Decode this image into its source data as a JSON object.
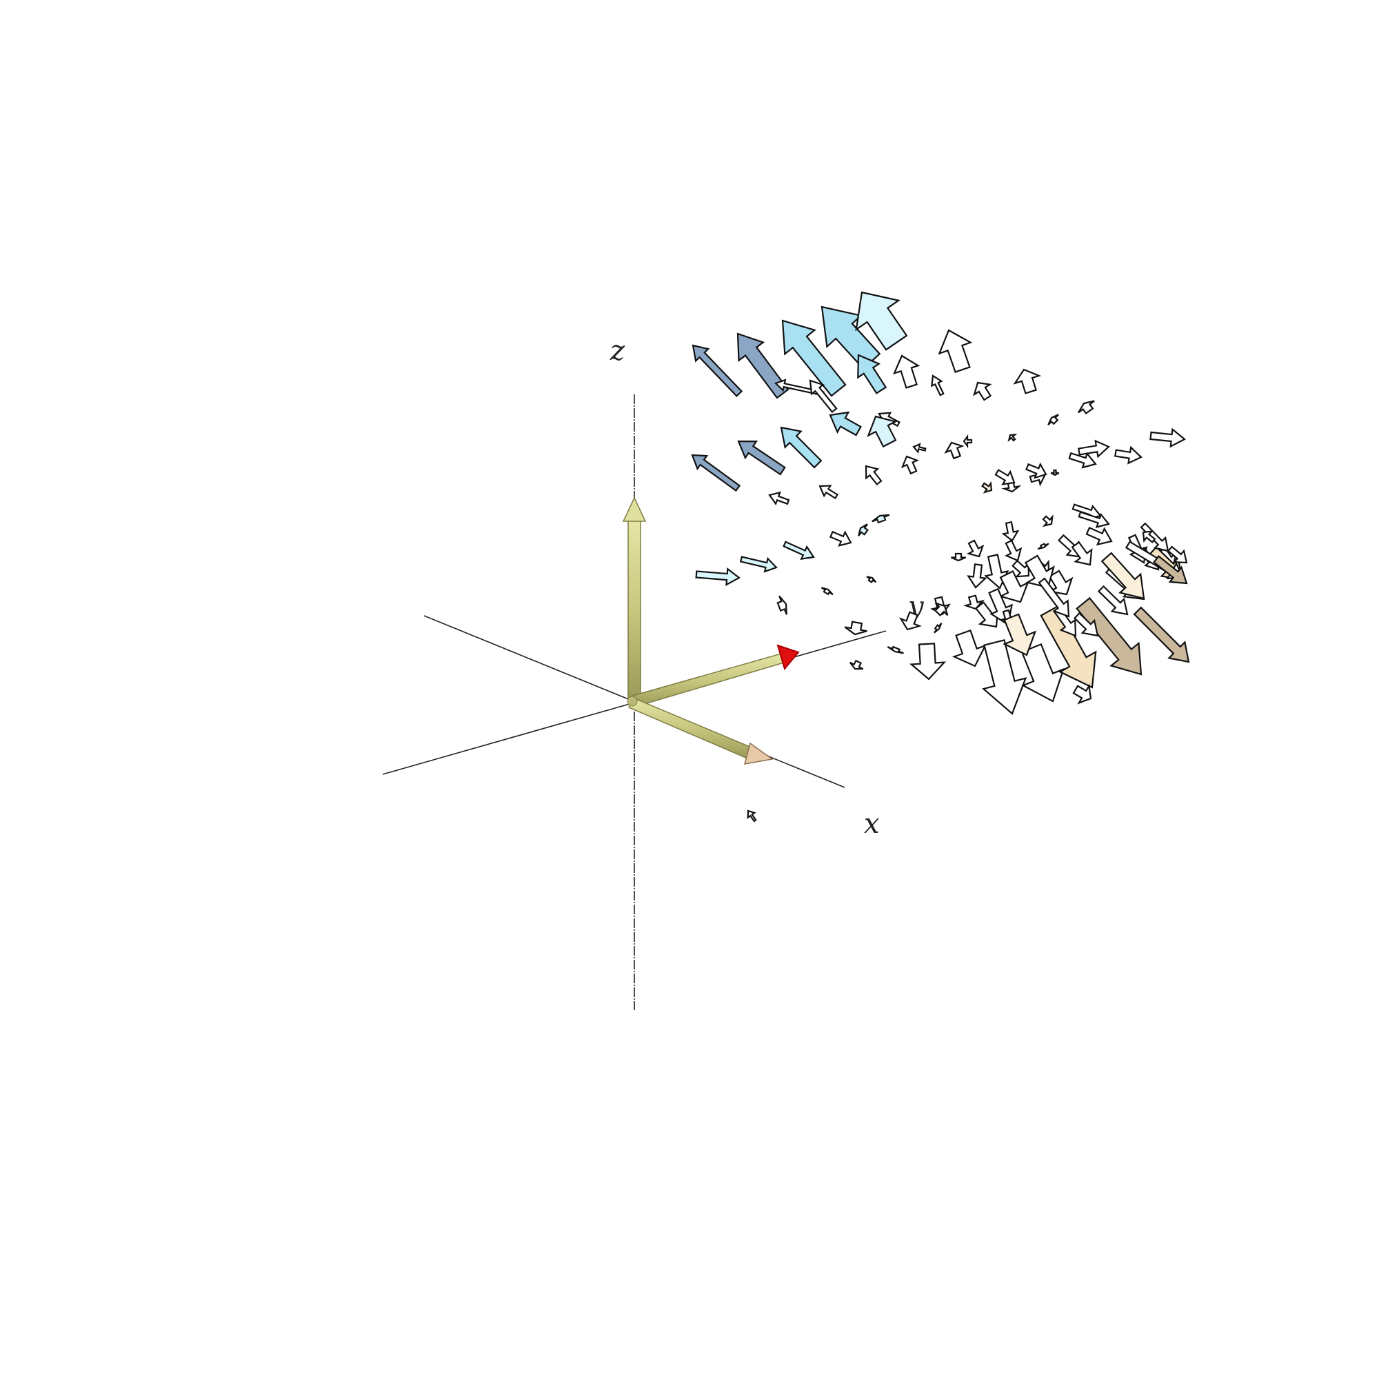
{
  "figure": {
    "axis_labels": {
      "x": "x",
      "y": "y",
      "z": "z"
    },
    "colors": {
      "background": "#ffffff",
      "axis_line": "#222222",
      "basis_vector": "#cfcf8a",
      "basis_vector_edge": "#7d7d45",
      "basis_tip_x": "#e7c9a8",
      "basis_tip_y": "#e01010",
      "arrow_outline": "#111111",
      "arrow_up_dark": "#8aa6c4",
      "arrow_up_mid": "#a9e0f2",
      "arrow_up_light": "#d8f6fb",
      "arrow_neutral": "#ffffff",
      "arrow_down_light": "#fbf0dc",
      "arrow_down_mid": "#f5e2c0",
      "arrow_down_dark": "#c9b89c"
    },
    "icons": [
      "basis-vector-x-icon",
      "basis-vector-y-icon",
      "basis-vector-z-icon",
      "vector-arrow-icon"
    ]
  }
}
